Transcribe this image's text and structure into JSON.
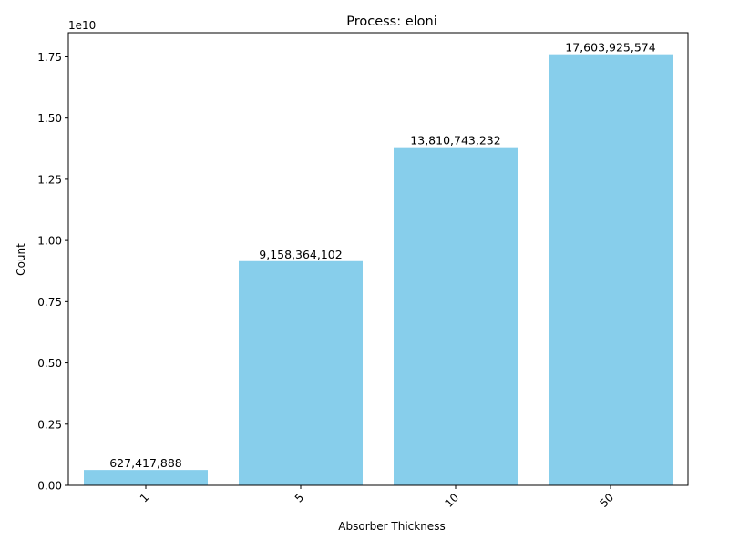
{
  "chart_data": {
    "type": "bar",
    "title": "Process: eloni",
    "xlabel": "Absorber Thickness",
    "ylabel": "Count",
    "y_offset_label": "1e10",
    "categories": [
      "1",
      "5",
      "10",
      "50"
    ],
    "values": [
      627417888,
      9158364102,
      13810743232,
      17603925574
    ],
    "value_labels": [
      "627,417,888",
      "9,158,364,102",
      "13,810,743,232",
      "17,603,925,574"
    ],
    "y_ticks": [
      0,
      0.25,
      0.5,
      0.75,
      1.0,
      1.25,
      1.5,
      1.75
    ],
    "y_tick_labels": [
      "0.00",
      "0.25",
      "0.50",
      "0.75",
      "1.00",
      "1.25",
      "1.50",
      "1.75"
    ],
    "y_scale": 10000000000,
    "ylim": [
      0,
      18484121852
    ],
    "x_tick_rotation": 45,
    "bar_color": "#87ceeb",
    "grid": false,
    "legend": "none"
  }
}
